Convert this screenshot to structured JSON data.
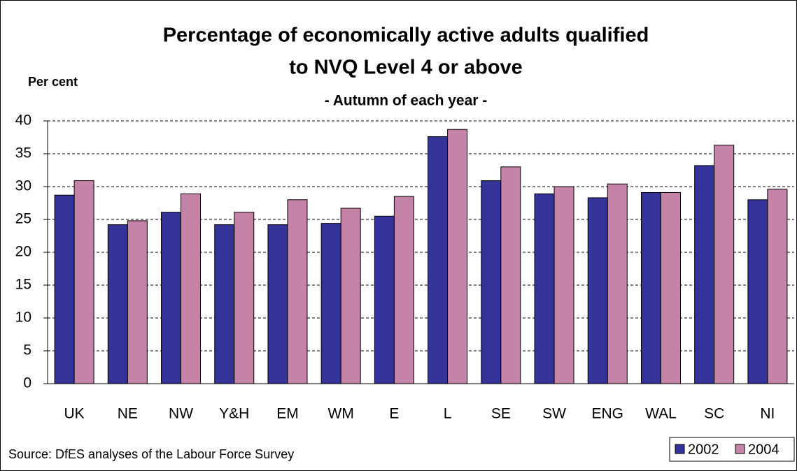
{
  "chart_data": {
    "type": "bar",
    "title": [
      "Percentage of economically active adults qualified",
      "to NVQ Level 4 or above"
    ],
    "subtitle": "- Autumn of each year -",
    "y_label": "Per cent",
    "source": "Source: DfES analyses of the Labour Force Survey",
    "categories": [
      "UK",
      "NE",
      "NW",
      "Y&H",
      "EM",
      "WM",
      "E",
      "L",
      "SE",
      "SW",
      "ENG",
      "WAL",
      "SC",
      "NI"
    ],
    "series": [
      {
        "name": "2002",
        "color": "#333399",
        "values": [
          28.7,
          24.2,
          26.1,
          24.2,
          24.2,
          24.4,
          25.5,
          37.6,
          30.9,
          28.9,
          28.3,
          29.1,
          33.2,
          28.0
        ]
      },
      {
        "name": "2004",
        "color": "#c683a8",
        "values": [
          30.9,
          24.8,
          28.9,
          26.1,
          28.0,
          26.7,
          28.5,
          38.7,
          33.0,
          30.0,
          30.4,
          29.1,
          36.3,
          29.6
        ]
      }
    ],
    "ylim": [
      0,
      40
    ],
    "yticks": [
      0,
      5,
      10,
      15,
      20,
      25,
      30,
      35,
      40
    ],
    "grid": true,
    "legend": "bottom-right"
  }
}
